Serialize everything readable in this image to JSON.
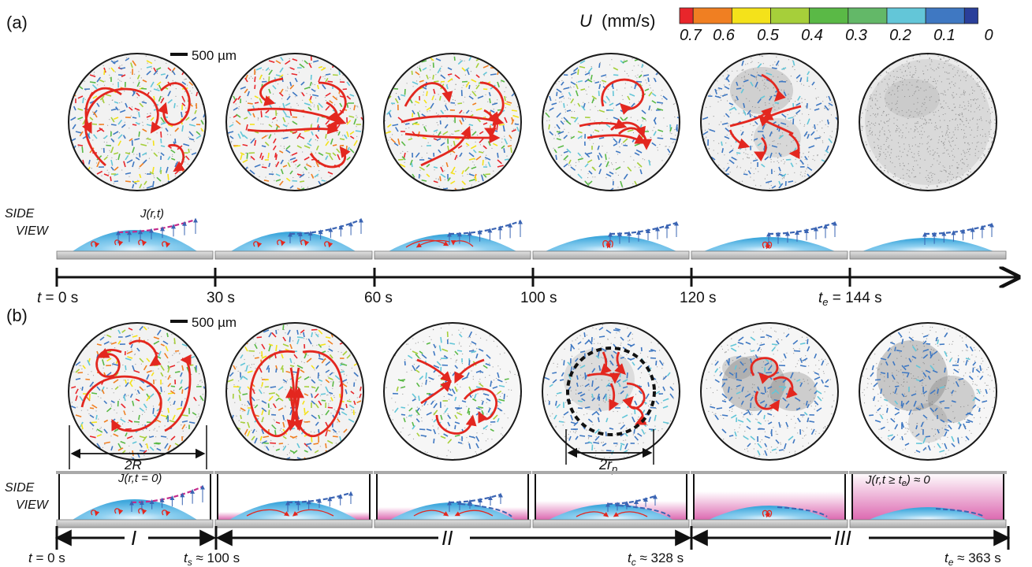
{
  "panel_a": {
    "label": "(a)",
    "scale_bar": "500 µm",
    "colorbar": {
      "title_var": "U",
      "title_unit": "(mm/s)",
      "ticks": [
        "0.7",
        "0.6",
        "0.5",
        "0.4",
        "0.3",
        "0.2",
        "0.1",
        "0"
      ],
      "colors": [
        "#e8262b",
        "#f07f22",
        "#f4e21a",
        "#a6cf3a",
        "#5ab946",
        "#63b868",
        "#63c6d8",
        "#3f78c2",
        "#2a3f9a"
      ]
    },
    "side_view_label_1": "SIDE",
    "side_view_label_2": "VIEW",
    "flux_label": "J(r,t)",
    "time_labels": [
      "t = 0 s",
      "30 s",
      "60 s",
      "100 s",
      "120 s",
      "t",
      "e",
      " = 144 s"
    ]
  },
  "panel_b": {
    "label": "(b)",
    "scale_bar": "500 µm",
    "side_view_label_1": "SIDE",
    "side_view_label_2": "VIEW",
    "diameter_label": "2R",
    "pinned_label": "2r",
    "pinned_sub": "p",
    "flux_start": "J(r,t = 0)",
    "flux_end": "J(r,t ≥ t",
    "flux_end_sub": "e",
    "flux_end_tail": ") ≈ 0",
    "stages": [
      "I",
      "II",
      "III"
    ],
    "t0": "t = 0 s",
    "ts": "t",
    "ts_sub": "s",
    "ts_tail": " ≈ 100 s",
    "tc": "t",
    "tc_sub": "c",
    "tc_tail": " ≈ 328 s",
    "te": "t",
    "te_sub": "e",
    "te_tail": " ≈ 363 s"
  },
  "colors": {
    "vortex": "#e3271f",
    "droplet": "#4cb3e3",
    "flux": "#3a64b3",
    "flux_a0": "#c42a8a",
    "substrate": "#c8c8c8",
    "vapor": "#d64fa3"
  }
}
